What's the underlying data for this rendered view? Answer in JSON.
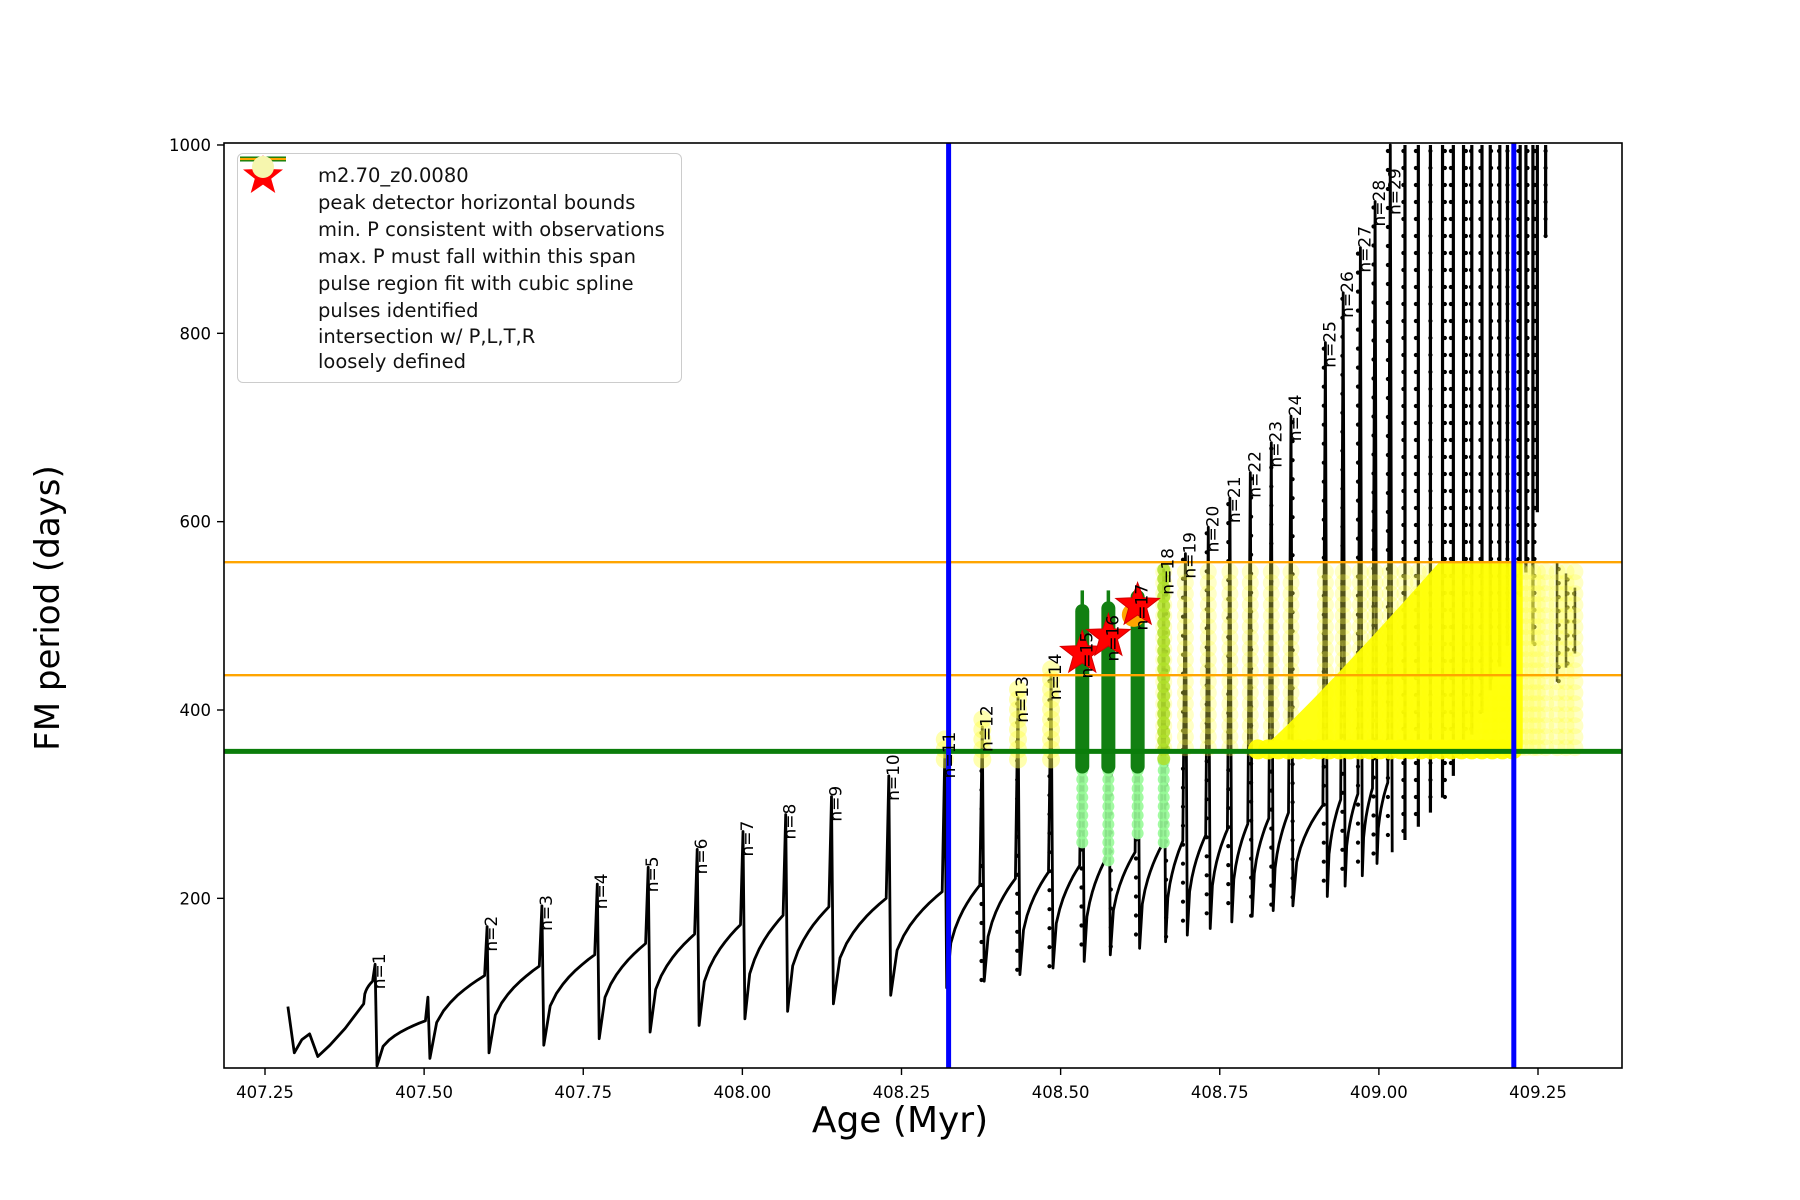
{
  "axes": {
    "xlabel": "Age (Myr)",
    "ylabel": "FM period (days)",
    "xticks": [
      407.25,
      407.5,
      407.75,
      408.0,
      408.25,
      408.5,
      408.75,
      409.0,
      409.25
    ],
    "yticks": [
      200,
      400,
      600,
      800,
      1000
    ],
    "xlim": [
      407.186,
      409.383
    ],
    "ylim": [
      20,
      1000
    ]
  },
  "legend": {
    "items": [
      {
        "sample": "line-dot",
        "color": "#000000",
        "label": "m2.70_z0.0080"
      },
      {
        "sample": "thick-line",
        "color": "#0000ff",
        "label": "peak detector horizontal bounds"
      },
      {
        "sample": "thick-line",
        "color": "#0a7d0a",
        "label": "min. P consistent with observations"
      },
      {
        "sample": "thin-line",
        "color": "#ffa500",
        "label": "max. P must fall within this span"
      },
      {
        "sample": "small-dot",
        "color": "#98fb98",
        "label": "pulse region fit with cubic spline"
      },
      {
        "sample": "star",
        "color": "#ff0000",
        "label": "pulses identified"
      },
      {
        "sample": "big-dot",
        "color": "#f6f6ae",
        "label": "intersection w/ P,L,T,R\nloosely defined"
      }
    ]
  },
  "colors": {
    "curve": "#000000",
    "blue": "#0000ff",
    "green": "#0a7d0a",
    "orange": "#ffa500",
    "palegreen": "#98fb98",
    "darkgreen": "#128012",
    "greenyellow": "#b0e02a",
    "yellow": "#ffff00",
    "paleyellow": "#ffff4d",
    "red": "#ff0000"
  },
  "chart_data": {
    "type": "line",
    "series_label": "m2.70_z0.0080",
    "xlabel": "Age (Myr)",
    "ylabel": "FM period (days)",
    "grid": false,
    "legend_position": "upper left",
    "blue_vlines_age": [
      408.324,
      409.212
    ],
    "green_hline_P": 356,
    "orange_hlines_P": [
      437,
      557
    ],
    "preamble_points": [
      [
        407.286,
        85
      ],
      [
        407.296,
        36
      ],
      [
        407.308,
        50
      ],
      [
        407.32,
        56
      ],
      [
        407.333,
        32
      ],
      [
        407.352,
        44
      ],
      [
        407.376,
        62
      ],
      [
        407.405,
        88
      ]
    ],
    "pulses": [
      {
        "n": 1,
        "label": "n=1",
        "age": 407.423,
        "peak": 130,
        "shoulder": 112,
        "dip": 22
      },
      {
        "n": null,
        "label": null,
        "age": 407.506,
        "peak": 95,
        "shoulder": 70,
        "dip": 30
      },
      {
        "n": 2,
        "label": "n=2",
        "age": 407.599,
        "peak": 170,
        "shoulder": 118,
        "dip": 36
      },
      {
        "n": 3,
        "label": "n=3",
        "age": 407.685,
        "peak": 192,
        "shoulder": 128,
        "dip": 44
      },
      {
        "n": 4,
        "label": "n=4",
        "age": 407.772,
        "peak": 215,
        "shoulder": 140,
        "dip": 51
      },
      {
        "n": 5,
        "label": "n=5",
        "age": 407.852,
        "peak": 233,
        "shoulder": 152,
        "dip": 58
      },
      {
        "n": 6,
        "label": "n=6",
        "age": 407.929,
        "peak": 252,
        "shoulder": 162,
        "dip": 65
      },
      {
        "n": 7,
        "label": "n=7",
        "age": 408.001,
        "peak": 271,
        "shoulder": 172,
        "dip": 72
      },
      {
        "n": 8,
        "label": "n=8",
        "age": 408.068,
        "peak": 289,
        "shoulder": 182,
        "dip": 80
      },
      {
        "n": 9,
        "label": "n=9",
        "age": 408.14,
        "peak": 308,
        "shoulder": 191,
        "dip": 88
      },
      {
        "n": 10,
        "label": "n=10",
        "age": 408.23,
        "peak": 330,
        "shoulder": 200,
        "dip": 97
      },
      {
        "n": 11,
        "label": "n=11",
        "age": 408.318,
        "peak": 354,
        "shoulder": 207,
        "dip": 105
      },
      {
        "n": 12,
        "label": "n=12",
        "age": 408.377,
        "peak": 382,
        "shoulder": 214,
        "dip": 112
      },
      {
        "n": 13,
        "label": "n=13",
        "age": 408.433,
        "peak": 413,
        "shoulder": 221,
        "dip": 119
      },
      {
        "n": 14,
        "label": "n=14",
        "age": 408.485,
        "peak": 437,
        "shoulder": 228,
        "dip": 126
      },
      {
        "n": 15,
        "label": "n=15",
        "age": 408.534,
        "peak": 460,
        "shoulder": 235,
        "dip": 133
      },
      {
        "n": 16,
        "label": "n=16",
        "age": 408.575,
        "peak": 478,
        "shoulder": 242,
        "dip": 140
      },
      {
        "n": 17,
        "label": "n=17",
        "age": 408.621,
        "peak": 511,
        "shoulder": 249,
        "dip": 147
      },
      {
        "n": 18,
        "label": "n=18",
        "age": 408.662,
        "peak": 549,
        "shoulder": 255,
        "dip": 154
      },
      {
        "n": 19,
        "label": "n=19",
        "age": 408.696,
        "peak": 566,
        "shoulder": 261,
        "dip": 161
      },
      {
        "n": 20,
        "label": "n=20",
        "age": 408.732,
        "peak": 594,
        "shoulder": 267,
        "dip": 168
      },
      {
        "n": 21,
        "label": "n=21",
        "age": 408.766,
        "peak": 625,
        "shoulder": 273,
        "dip": 175
      },
      {
        "n": 22,
        "label": "n=22",
        "age": 408.798,
        "peak": 652,
        "shoulder": 279,
        "dip": 181
      },
      {
        "n": 23,
        "label": "n=23",
        "age": 408.831,
        "peak": 684,
        "shoulder": 285,
        "dip": 187
      },
      {
        "n": 24,
        "label": "n=24",
        "age": 408.862,
        "peak": 712,
        "shoulder": 291,
        "dip": 192
      },
      {
        "n": 25,
        "label": "n=25",
        "age": 408.916,
        "peak": 790,
        "shoulder": 299,
        "dip": 202
      },
      {
        "n": 26,
        "label": "n=26",
        "age": 408.944,
        "peak": 843,
        "shoulder": 305,
        "dip": 213
      },
      {
        "n": 27,
        "label": "n=27",
        "age": 408.971,
        "peak": 891,
        "shoulder": 311,
        "dip": 224
      },
      {
        "n": 28,
        "label": "n=28",
        "age": 408.994,
        "peak": 940,
        "shoulder": 317,
        "dip": 237
      },
      {
        "n": 29,
        "label": "n=29",
        "age": 409.018,
        "peak": 1000,
        "shoulder": 323,
        "dip": 249
      }
    ],
    "extra_spikes": [
      [
        409.041,
        1000,
        262
      ],
      [
        409.062,
        1000,
        276
      ],
      [
        409.081,
        1000,
        291
      ],
      [
        409.1,
        1000,
        307
      ],
      [
        409.117,
        1000,
        330
      ],
      [
        409.133,
        1000,
        352
      ],
      [
        409.146,
        1000,
        374
      ],
      [
        409.162,
        1000,
        397
      ],
      [
        409.175,
        1000,
        421
      ],
      [
        409.19,
        1000,
        446
      ],
      [
        409.202,
        1000,
        470
      ],
      [
        409.213,
        1000,
        494
      ],
      [
        409.222,
        1000,
        520
      ],
      [
        409.231,
        1000,
        546
      ],
      [
        409.242,
        1000,
        470
      ],
      [
        409.249,
        1000,
        610
      ],
      [
        409.262,
        1000,
        903
      ]
    ],
    "short_columns": [
      [
        409.28,
        556,
        430
      ],
      [
        409.294,
        545,
        445
      ],
      [
        409.308,
        530,
        460
      ]
    ],
    "yellow_tip_columns": [
      {
        "age": 408.318,
        "topP": 368
      },
      {
        "age": 408.377,
        "topP": 390
      },
      {
        "age": 408.433,
        "topP": 420
      },
      {
        "age": 408.485,
        "topP": 442
      }
    ],
    "pale_yellow_band": {
      "from_age": 408.662,
      "to_age": 409.308,
      "topP": 556,
      "bottomP": 360
    },
    "bright_wedge": {
      "x0": 408.81,
      "x1": 409.095,
      "x2": 409.226,
      "topP": 557,
      "bottomP": 356
    },
    "spline_columns": [
      {
        "age": 408.534,
        "lowP": 250,
        "thickTopP": 505,
        "tipP": 527
      },
      {
        "age": 408.575,
        "lowP": 232,
        "thickTopP": 508,
        "tipP": 527
      },
      {
        "age": 408.621,
        "lowP": 262,
        "thickTopP": 520,
        "tipP": 532
      }
    ],
    "greenyellow_column": {
      "age": 408.662,
      "lowP": 250,
      "topP": 549
    },
    "stars": [
      [
        408.534,
        460
      ],
      [
        408.575,
        478
      ],
      [
        408.621,
        511
      ]
    ],
    "orange_dot": [
      408.615,
      501
    ]
  }
}
